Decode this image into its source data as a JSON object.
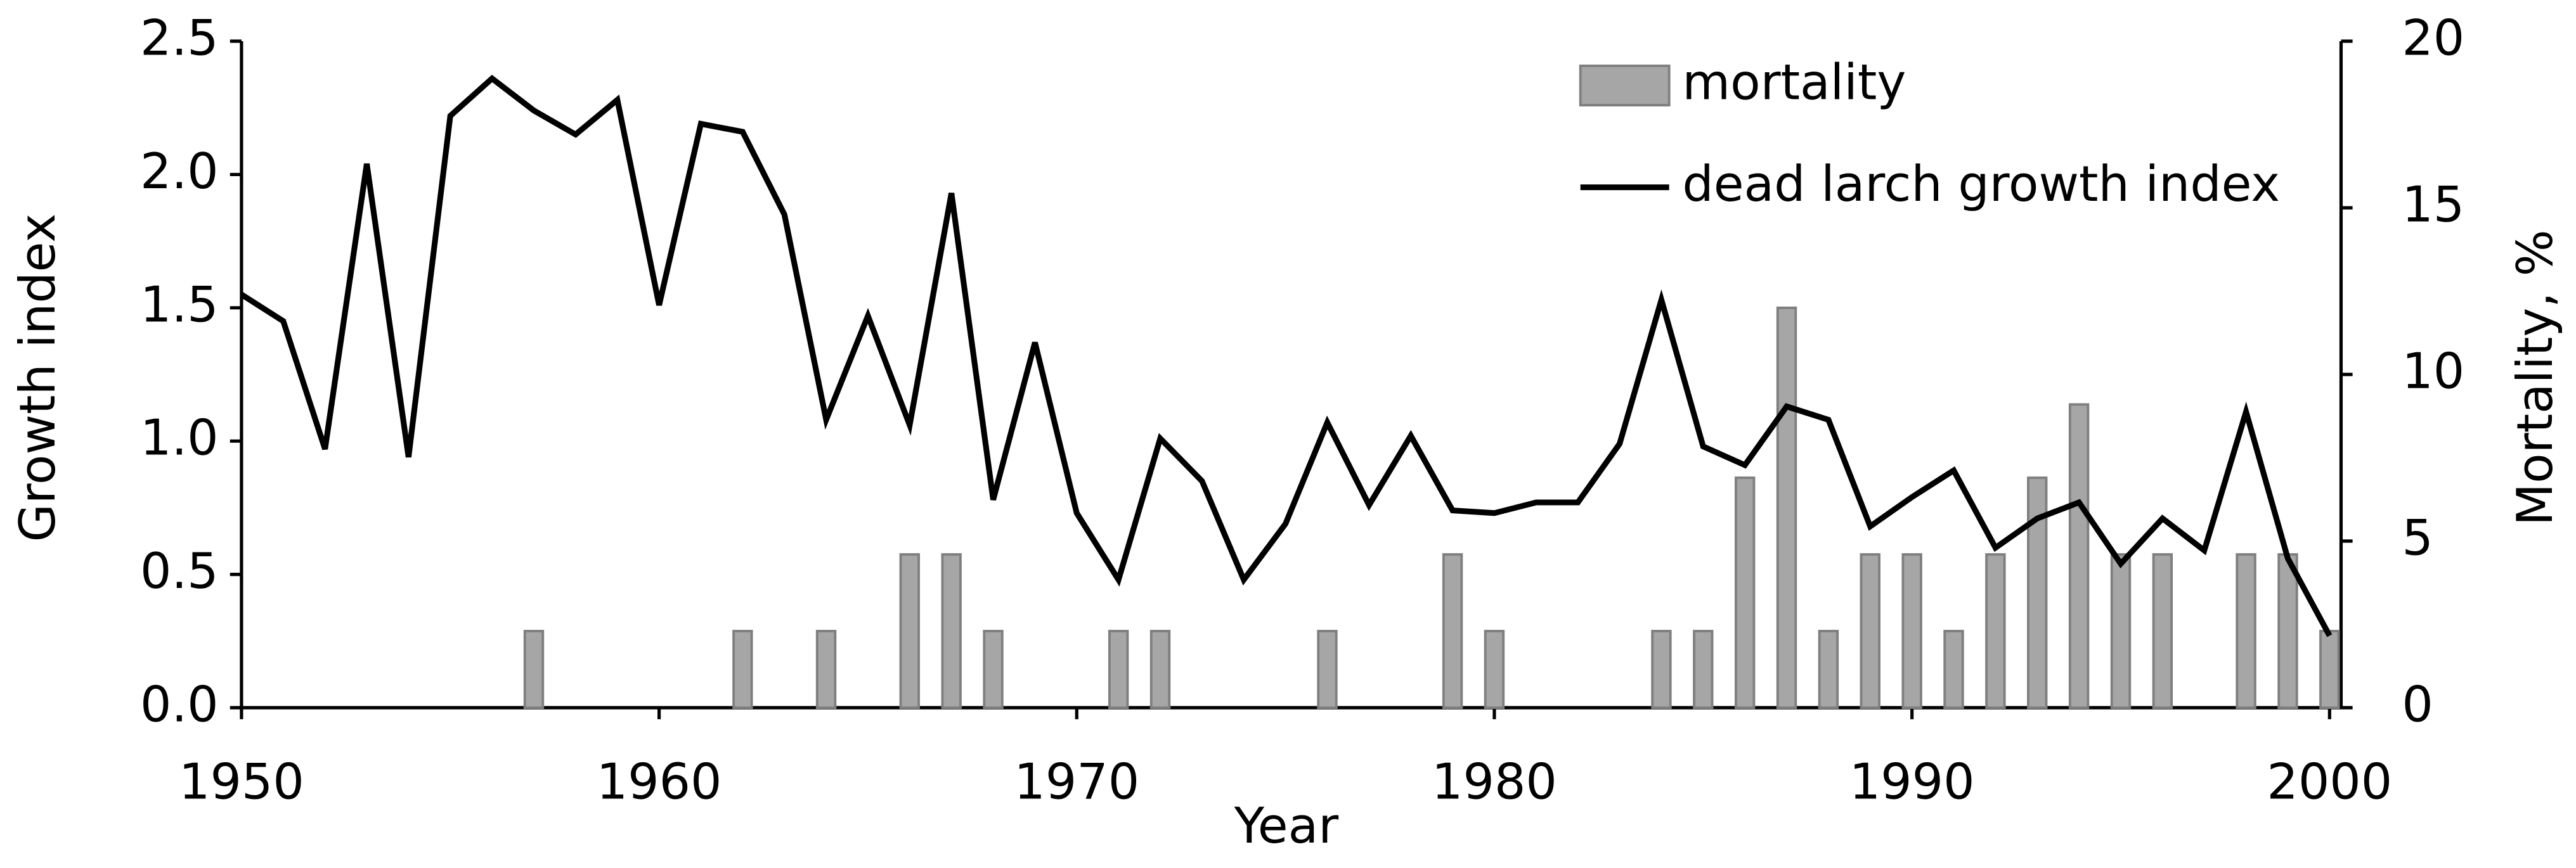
{
  "chart_data": {
    "type": "bar-line",
    "x_label": "Year",
    "y_label": "Growth index",
    "y2_label": "Mortality, %",
    "x": [
      1950,
      1951,
      1952,
      1953,
      1954,
      1955,
      1956,
      1957,
      1958,
      1959,
      1960,
      1961,
      1962,
      1963,
      1964,
      1965,
      1966,
      1967,
      1968,
      1969,
      1970,
      1971,
      1972,
      1973,
      1974,
      1975,
      1976,
      1977,
      1978,
      1979,
      1980,
      1981,
      1982,
      1983,
      1984,
      1985,
      1986,
      1987,
      1988,
      1989,
      1990,
      1991,
      1992,
      1993,
      1994,
      1995,
      1996,
      1997,
      1998,
      1999,
      2000
    ],
    "series": [
      {
        "name": "mortality",
        "type": "bar",
        "axis": "y2",
        "color": "#a6a6a6",
        "values": [
          0,
          0,
          0,
          0,
          0,
          0,
          0,
          2.3,
          0,
          0,
          0,
          0,
          2.3,
          0,
          2.3,
          0,
          4.6,
          4.6,
          2.3,
          0,
          0,
          2.3,
          2.3,
          0,
          0,
          0,
          2.3,
          0,
          0,
          4.6,
          2.3,
          0,
          0,
          0,
          2.3,
          2.3,
          6.9,
          12.0,
          2.3,
          4.6,
          4.6,
          2.3,
          4.6,
          6.9,
          9.1,
          4.6,
          4.6,
          0,
          4.6,
          4.6,
          2.3
        ]
      },
      {
        "name": "dead larch growth index",
        "type": "line",
        "color": "#000000",
        "values": [
          1.55,
          1.45,
          0.97,
          2.04,
          0.94,
          2.22,
          2.36,
          2.24,
          2.15,
          2.28,
          1.51,
          2.19,
          2.16,
          1.85,
          1.08,
          1.47,
          1.06,
          1.93,
          0.78,
          1.37,
          0.73,
          0.48,
          1.01,
          0.85,
          0.48,
          0.69,
          1.07,
          0.76,
          1.02,
          0.74,
          0.73,
          0.77,
          0.77,
          0.99,
          1.53,
          0.98,
          0.91,
          1.13,
          1.08,
          0.68,
          0.79,
          0.89,
          0.6,
          0.71,
          0.77,
          0.54,
          0.71,
          0.59,
          1.11,
          0.56,
          0.27
        ]
      }
    ],
    "xlim": [
      1950,
      2000
    ],
    "xticks": [
      1950,
      1960,
      1970,
      1980,
      1990,
      2000
    ],
    "ylim": [
      0,
      2.5
    ],
    "yticks": [
      {
        "value": 0,
        "label": "0.0"
      },
      {
        "value": 0.5,
        "label": "0.5"
      },
      {
        "value": 1,
        "label": "1.0"
      },
      {
        "value": 1.5,
        "label": "1.5"
      },
      {
        "value": 2,
        "label": "2.0"
      },
      {
        "value": 2.5,
        "label": "2.5"
      }
    ],
    "y2lim": [
      0,
      20
    ],
    "y2ticks": [
      0,
      5,
      10,
      15,
      20
    ],
    "legend": "top-right"
  }
}
